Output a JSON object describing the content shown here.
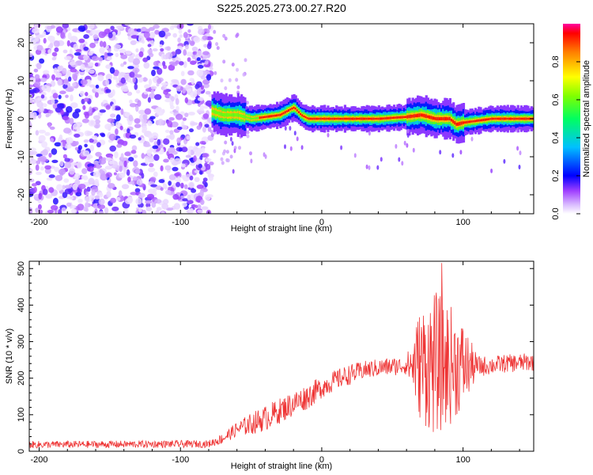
{
  "title": "S225.2025.273.00.27.R20",
  "chart_data": [
    {
      "type": "heatmap",
      "xlabel": "Height of straight line (km)",
      "ylabel": "Frequency (Hz)",
      "xlim": [
        -207,
        150
      ],
      "ylim": [
        -25,
        25
      ],
      "xticks": [
        -200,
        -100,
        0,
        100
      ],
      "yticks": [
        -20,
        -10,
        0,
        10,
        20
      ],
      "colorbar": {
        "label": "Normalized spectral amplitude",
        "range": [
          0,
          1
        ],
        "ticks": [
          0.0,
          0.2,
          0.4,
          0.6,
          0.8
        ]
      },
      "regions": [
        {
          "name": "noise",
          "x_range": [
            -207,
            -78
          ],
          "freq_range": [
            -25,
            25
          ],
          "amplitude": 0.1
        },
        {
          "name": "signal-track",
          "x_range": [
            -78,
            150
          ],
          "freq_center": 0,
          "amplitude": 0.95
        }
      ],
      "ridge": {
        "x": [
          -78,
          -70,
          -60,
          -50,
          -40,
          -30,
          -20,
          -15,
          -10,
          0,
          20,
          40,
          60,
          70,
          80,
          90,
          95,
          100,
          120,
          140,
          150
        ],
        "freq": [
          2,
          1,
          1,
          0,
          0.5,
          1,
          3,
          1,
          0,
          0,
          0,
          0,
          0.5,
          1,
          0,
          0,
          -1.5,
          -1,
          0,
          0,
          0
        ]
      }
    },
    {
      "type": "line",
      "xlabel": "Height of straight line (km)",
      "ylabel": "SNR (10 * v/v)",
      "xlim": [
        -207,
        150
      ],
      "ylim": [
        0,
        520
      ],
      "xticks": [
        -200,
        -100,
        0,
        100
      ],
      "yticks": [
        0,
        100,
        200,
        300,
        400,
        500
      ],
      "color": "#ee3333",
      "envelope": {
        "x": [
          -207,
          -80,
          -70,
          -60,
          -50,
          -40,
          -30,
          -20,
          -10,
          0,
          10,
          20,
          30,
          40,
          50,
          60,
          70,
          80,
          90,
          100,
          110,
          120,
          130,
          140,
          150
        ],
        "level": [
          18,
          20,
          35,
          60,
          75,
          90,
          110,
          130,
          150,
          175,
          195,
          210,
          222,
          228,
          232,
          235,
          240,
          240,
          238,
          235,
          232,
          235,
          240,
          242,
          245
        ],
        "noise": [
          10,
          10,
          15,
          20,
          30,
          35,
          35,
          35,
          35,
          30,
          28,
          28,
          25,
          25,
          25,
          25,
          160,
          200,
          170,
          120,
          30,
          25,
          25,
          25,
          25
        ]
      },
      "peak": {
        "x": 85,
        "y": 515
      }
    }
  ]
}
